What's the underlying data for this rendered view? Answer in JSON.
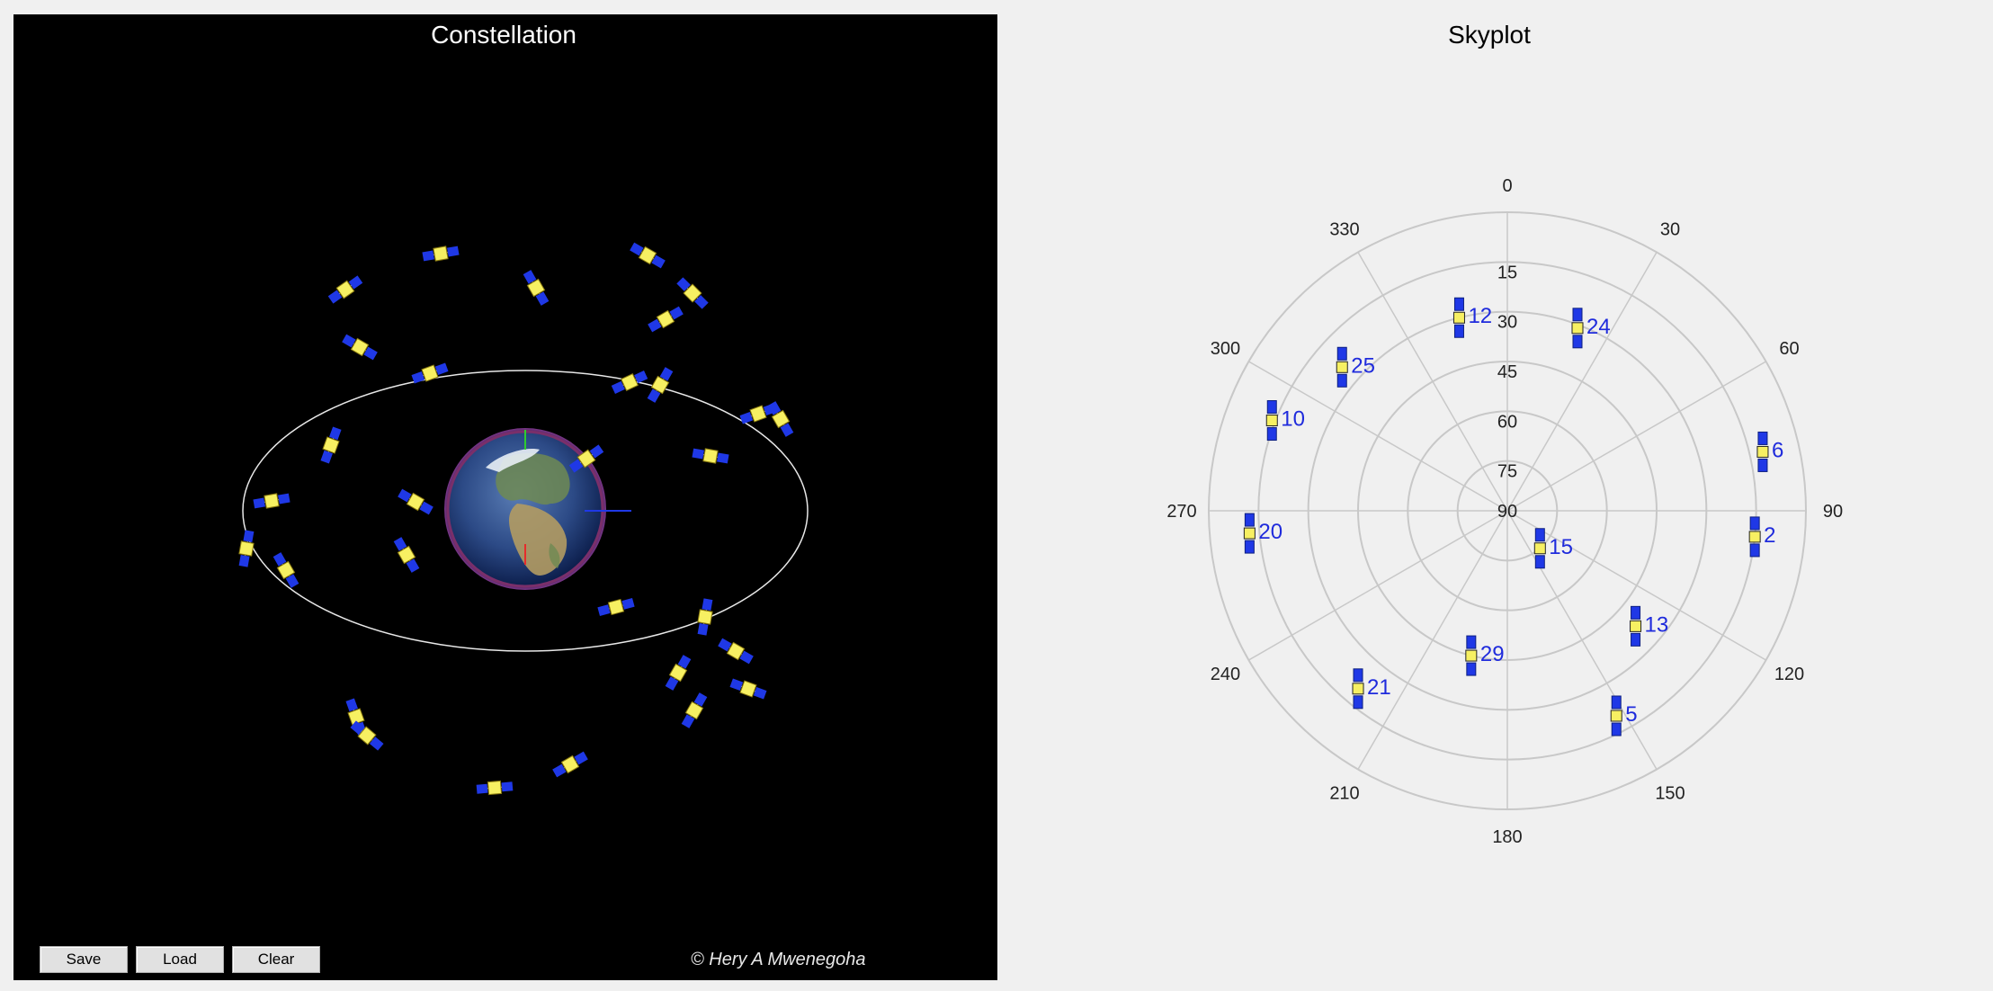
{
  "constellation": {
    "title": "Constellation",
    "credit": "© Hery A Mwenegoha",
    "background": "#000000",
    "orbit_color": "#e8e8e8",
    "satellite_body_color": "#f7f062",
    "solar_panel_color": "#1f38e6",
    "buttons": {
      "save": "Save",
      "load": "Load",
      "clear": "Clear"
    },
    "axes_colors": {
      "x": "#1f38e6",
      "y": "#2ecc2e",
      "z": "#e62b2b"
    }
  },
  "skyplot": {
    "title": "Skyplot",
    "background": "#f0f0f0",
    "grid_color": "#c8c8c8",
    "label_color": "#1f2bdc",
    "azimuth_labels": [
      "0",
      "30",
      "60",
      "90",
      "120",
      "150",
      "180",
      "210",
      "240",
      "270",
      "300",
      "330"
    ],
    "elevation_labels": [
      "15",
      "30",
      "45",
      "60",
      "75",
      "90"
    ]
  },
  "chart_data": {
    "type": "scatter",
    "title": "Skyplot",
    "xlabel": "",
    "ylabel": "",
    "coordinate_system": "polar azimuth (deg) / elevation (deg)",
    "grid": true,
    "points": [
      {
        "label": "12",
        "azimuth": 346,
        "elevation": 30
      },
      {
        "label": "24",
        "azimuth": 21,
        "elevation": 31
      },
      {
        "label": "25",
        "azimuth": 311,
        "elevation": 24
      },
      {
        "label": "10",
        "azimuth": 291,
        "elevation": 14
      },
      {
        "label": "6",
        "azimuth": 77,
        "elevation": 11
      },
      {
        "label": "20",
        "azimuth": 265,
        "elevation": 12
      },
      {
        "label": "2",
        "azimuth": 96,
        "elevation": 15
      },
      {
        "label": "15",
        "azimuth": 139,
        "elevation": 75
      },
      {
        "label": "29",
        "azimuth": 194,
        "elevation": 45
      },
      {
        "label": "13",
        "azimuth": 132,
        "elevation": 38
      },
      {
        "label": "21",
        "azimuth": 220,
        "elevation": 20
      },
      {
        "label": "5",
        "azimuth": 152,
        "elevation": 20
      }
    ]
  }
}
